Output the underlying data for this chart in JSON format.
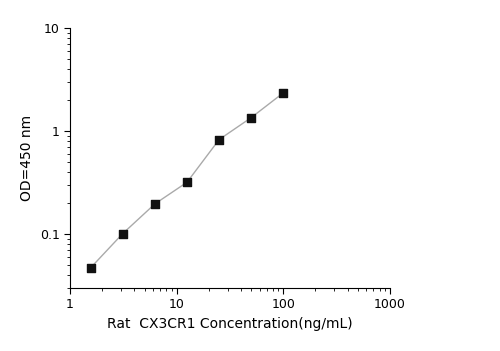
{
  "x_values": [
    1.5625,
    3.125,
    6.25,
    12.5,
    25,
    50,
    100
  ],
  "y_values": [
    0.047,
    0.101,
    0.196,
    0.318,
    0.826,
    1.35,
    2.35
  ],
  "xlabel": "Rat  CX3CR1 Concentration(ng/mL)",
  "ylabel": "OD=450 nm",
  "xlim": [
    1,
    1000
  ],
  "ylim": [
    0.03,
    10
  ],
  "line_color": "#aaaaaa",
  "marker_color": "#111111",
  "marker": "s",
  "marker_size": 5.5,
  "line_width": 1.0,
  "xlabel_fontsize": 10,
  "ylabel_fontsize": 10,
  "tick_fontsize": 9,
  "background_color": "#ffffff"
}
